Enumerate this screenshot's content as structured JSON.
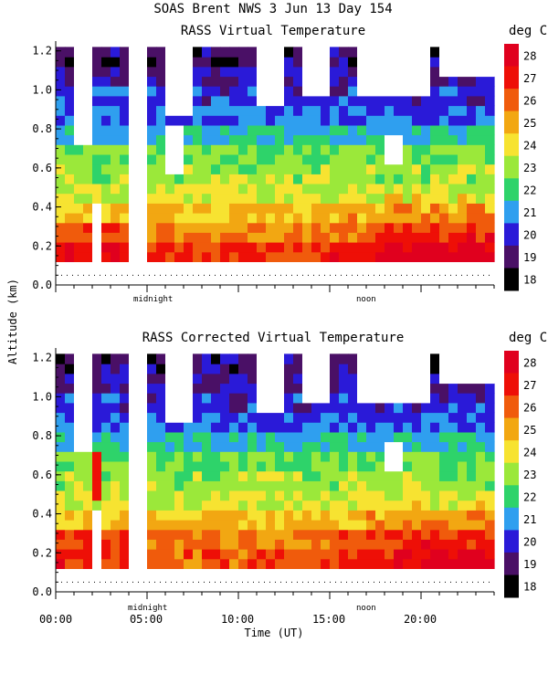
{
  "header": {
    "title": "SOAS Brent NWS    3 Jun 13 Day 154"
  },
  "colors": {
    "palette": [
      "#000000",
      "#4a1066",
      "#2a1ad8",
      "#2f9fef",
      "#2ed36a",
      "#9be83a",
      "#f7e331",
      "#f2a712",
      "#f05b0c",
      "#ee0f07",
      "#e0001e"
    ]
  },
  "chart_data": [
    {
      "type": "heatmap",
      "title": "RASS Virtual Temperature",
      "ylabel": "Altitude (km)",
      "xlabel": "",
      "xlim": [
        0,
        24
      ],
      "ylim": [
        0,
        1.25
      ],
      "yticks": [
        "0.0",
        "0.2",
        "0.4",
        "0.6",
        "0.8",
        "1.0",
        "1.2"
      ],
      "xtick_labels": [],
      "annotations": [
        "midnight",
        "noon"
      ],
      "colorbar": {
        "unit": "deg C",
        "levels": [
          "28",
          "27",
          "26",
          "25",
          "24",
          "23",
          "22",
          "21",
          "20",
          "19",
          "18"
        ]
      },
      "altitude_bands": [
        0.1,
        0.2,
        0.3,
        0.4,
        0.5,
        0.6,
        0.7,
        0.8,
        0.9,
        1.0,
        1.1,
        1.2
      ],
      "temperature_profile": [
        27,
        26,
        25,
        24,
        23.5,
        23,
        22,
        21,
        20.5,
        20,
        19.5,
        19
      ]
    },
    {
      "type": "heatmap",
      "title": "RASS Corrected Virtual Temperature",
      "ylabel": "",
      "xlabel": "Time (UT)",
      "xlim": [
        0,
        24
      ],
      "ylim": [
        0,
        1.25
      ],
      "yticks": [
        "0.0",
        "0.2",
        "0.4",
        "0.6",
        "0.8",
        "1.0",
        "1.2"
      ],
      "xtick_labels": [
        "00:00",
        "05:00",
        "10:00",
        "15:00",
        "20:00"
      ],
      "annotations": [
        "midnight",
        "noon"
      ],
      "colorbar": {
        "unit": "deg C",
        "levels": [
          "28",
          "27",
          "26",
          "25",
          "24",
          "23",
          "22",
          "21",
          "20",
          "19",
          "18"
        ]
      },
      "altitude_bands": [
        0.1,
        0.2,
        0.3,
        0.4,
        0.5,
        0.6,
        0.7,
        0.8,
        0.9,
        1.0,
        1.1,
        1.2
      ],
      "temperature_profile": [
        26.5,
        26,
        25,
        24,
        23.5,
        23,
        22,
        21,
        20.5,
        20,
        19.5,
        19
      ]
    }
  ],
  "shared": {
    "ylabel": "Altitude (km)"
  }
}
